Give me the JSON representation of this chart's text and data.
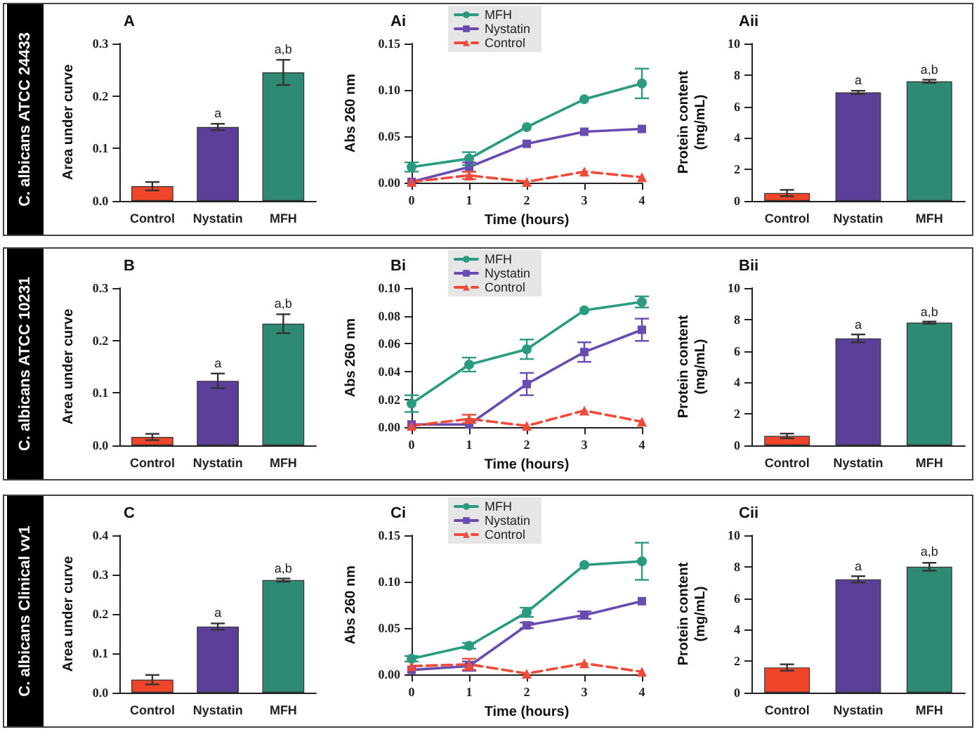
{
  "chart_data": [
    {
      "type": "bar",
      "title": "A",
      "ylabel": "Area under curve",
      "categories": [
        "Control",
        "Nystatin",
        "MFH"
      ],
      "values": [
        0.028,
        0.141,
        0.245
      ],
      "errors": [
        0.008,
        0.006,
        0.024
      ],
      "colors": [
        "#f0452b",
        "#5b3f99",
        "#2e8a73"
      ],
      "ylim": [
        0,
        0.3
      ],
      "yticks": [
        {
          "value": 0,
          "label": "0.0"
        },
        0.1,
        0.2,
        0.3
      ],
      "grid": false,
      "annotations": [
        "C. albicans ATCC 24433",
        {
          "text": "a",
          "x": "Nystatin",
          "y": 0.147
        },
        {
          "text": "a,b",
          "x": "MFH",
          "y": 0.269
        }
      ]
    },
    {
      "type": "line",
      "title": "Ai",
      "xlabel": "Time (hours)",
      "ylabel": "Abs 260 nm",
      "x": [
        0,
        1,
        2,
        3,
        4
      ],
      "xlim": [
        0,
        4
      ],
      "xticks": [
        0,
        1,
        2,
        3,
        4
      ],
      "ylim": [
        0,
        0.15
      ],
      "yticks": [
        {
          "value": 0,
          "label": "0.00"
        },
        0.05,
        {
          "value": 0.1,
          "label": "0.10"
        },
        0.15
      ],
      "grid": false,
      "legend": "top left",
      "series": [
        {
          "name": "MFH",
          "color": "#2a9a80",
          "marker": "circle",
          "line_style": "solid",
          "values": [
            0.017,
            0.026,
            0.06,
            0.09,
            0.107
          ],
          "errors": [
            0.005,
            0.007,
            null,
            null,
            0.016
          ]
        },
        {
          "name": "Nystatin",
          "color": "#6a4cb0",
          "marker": "square",
          "line_style": "solid",
          "values": [
            0.001,
            0.017,
            0.042,
            0.055,
            0.058
          ],
          "errors": [
            null,
            0.005,
            null,
            null,
            null
          ]
        },
        {
          "name": "Control",
          "color": "#f04a3a",
          "marker": "triangle",
          "line_style": "dashed",
          "values": [
            0.001,
            0.008,
            0.001,
            0.012,
            0.006
          ],
          "errors": [
            null,
            0.004,
            null,
            null,
            null
          ]
        }
      ]
    },
    {
      "type": "bar",
      "title": "Aii",
      "ylabel": "Protein content\n(mg/mL)",
      "categories": [
        "Control",
        "Nystatin",
        "MFH"
      ],
      "values": [
        0.5,
        6.9,
        7.6
      ],
      "errors": [
        0.2,
        0.1,
        0.1
      ],
      "colors": [
        "#f0452b",
        "#5b3f99",
        "#2e8a73"
      ],
      "ylim": [
        0,
        10
      ],
      "yticks": [
        0,
        2,
        4,
        6,
        8,
        10
      ],
      "grid": false,
      "annotations": [
        {
          "text": "a",
          "x": "Nystatin",
          "y": 7.0
        },
        {
          "text": "a,b",
          "x": "MFH",
          "y": 7.7
        }
      ]
    },
    {
      "type": "bar",
      "title": "B",
      "ylabel": "Area under curve",
      "categories": [
        "Control",
        "Nystatin",
        "MFH"
      ],
      "values": [
        0.016,
        0.123,
        0.232
      ],
      "errors": [
        0.006,
        0.014,
        0.018
      ],
      "colors": [
        "#f0452b",
        "#5b3f99",
        "#2e8a73"
      ],
      "ylim": [
        0,
        0.3
      ],
      "yticks": [
        {
          "value": 0,
          "label": "0.0"
        },
        0.1,
        0.2,
        0.3
      ],
      "grid": false,
      "annotations": [
        "C. albicans ATCC 10231",
        {
          "text": "a",
          "x": "Nystatin",
          "y": 0.137
        },
        {
          "text": "a,b",
          "x": "MFH",
          "y": 0.25
        }
      ]
    },
    {
      "type": "line",
      "title": "Bi",
      "xlabel": "Time (hours)",
      "ylabel": "Abs 260 nm",
      "x": [
        0,
        1,
        2,
        3,
        4
      ],
      "xlim": [
        0,
        4
      ],
      "xticks": [
        0,
        1,
        2,
        3,
        4
      ],
      "ylim": [
        0,
        0.1
      ],
      "yticks": [
        {
          "value": 0,
          "label": "0.00"
        },
        {
          "value": 0.02,
          "label": "0.02"
        },
        {
          "value": 0.04,
          "label": "0.04"
        },
        {
          "value": 0.06,
          "label": "0.06"
        },
        {
          "value": 0.08,
          "label": "0.08"
        },
        {
          "value": 0.1,
          "label": "0.10"
        }
      ],
      "grid": false,
      "legend": "top left",
      "series": [
        {
          "name": "MFH",
          "color": "#2a9a80",
          "marker": "circle",
          "line_style": "solid",
          "values": [
            0.017,
            0.045,
            0.056,
            0.084,
            0.09
          ],
          "errors": [
            0.006,
            0.005,
            0.007,
            null,
            0.004
          ]
        },
        {
          "name": "Nystatin",
          "color": "#6a4cb0",
          "marker": "square",
          "line_style": "solid",
          "values": [
            0.002,
            0.002,
            0.031,
            0.054,
            0.07
          ],
          "errors": [
            null,
            null,
            0.008,
            0.007,
            0.008
          ]
        },
        {
          "name": "Control",
          "color": "#f04a3a",
          "marker": "triangle",
          "line_style": "dashed",
          "values": [
            0.001,
            0.006,
            0.001,
            0.012,
            0.004
          ],
          "errors": [
            null,
            0.003,
            null,
            null,
            null
          ]
        }
      ]
    },
    {
      "type": "bar",
      "title": "Bii",
      "ylabel": "Protein content\n(mg/mL)",
      "categories": [
        "Control",
        "Nystatin",
        "MFH"
      ],
      "values": [
        0.6,
        6.8,
        7.8
      ],
      "errors": [
        0.15,
        0.25,
        0.07
      ],
      "colors": [
        "#f0452b",
        "#5b3f99",
        "#2e8a73"
      ],
      "ylim": [
        0,
        10
      ],
      "yticks": [
        0,
        2,
        4,
        6,
        8,
        10
      ],
      "grid": false,
      "annotations": [
        {
          "text": "a",
          "x": "Nystatin",
          "y": 7.0
        },
        {
          "text": "a,b",
          "x": "MFH",
          "y": 7.82
        }
      ]
    },
    {
      "type": "bar",
      "title": "C",
      "ylabel": "Area under curve",
      "categories": [
        "Control",
        "Nystatin",
        "MFH"
      ],
      "values": [
        0.033,
        0.168,
        0.286
      ],
      "errors": [
        0.012,
        0.008,
        0.004
      ],
      "colors": [
        "#f0452b",
        "#5b3f99",
        "#2e8a73"
      ],
      "ylim": [
        0,
        0.4
      ],
      "yticks": [
        {
          "value": 0,
          "label": "0.0"
        },
        0.1,
        0.2,
        0.3,
        0.4
      ],
      "grid": false,
      "annotations": [
        "C. albicans Clinical vv1",
        {
          "text": "a",
          "x": "Nystatin",
          "y": 0.176
        },
        {
          "text": "a,b",
          "x": "MFH",
          "y": 0.29
        }
      ]
    },
    {
      "type": "line",
      "title": "Ci",
      "xlabel": "Time (hours)",
      "ylabel": "Abs 260 nm",
      "x": [
        0,
        1,
        2,
        3,
        4
      ],
      "xlim": [
        0,
        4
      ],
      "xticks": [
        0,
        1,
        2,
        3,
        4
      ],
      "ylim": [
        0,
        0.15
      ],
      "yticks": [
        {
          "value": 0,
          "label": "0.00"
        },
        0.05,
        {
          "value": 0.1,
          "label": "0.10"
        },
        0.15
      ],
      "grid": false,
      "legend": "top left",
      "series": [
        {
          "name": "MFH",
          "color": "#2a9a80",
          "marker": "circle",
          "line_style": "solid",
          "values": [
            0.017,
            0.031,
            0.067,
            0.118,
            0.122
          ],
          "errors": [
            0.003,
            0.003,
            0.005,
            null,
            0.02
          ]
        },
        {
          "name": "Nystatin",
          "color": "#6a4cb0",
          "marker": "square",
          "line_style": "solid",
          "values": [
            0.005,
            0.009,
            0.053,
            0.064,
            0.079
          ],
          "errors": [
            null,
            0.005,
            0.003,
            0.004,
            null
          ]
        },
        {
          "name": "Control",
          "color": "#f04a3a",
          "marker": "triangle",
          "line_style": "dashed",
          "values": [
            0.009,
            0.011,
            0.001,
            0.012,
            0.003
          ],
          "errors": [
            null,
            0.006,
            null,
            null,
            null
          ]
        }
      ]
    },
    {
      "type": "bar",
      "title": "Cii",
      "ylabel": "Protein content\n(mg/mL)",
      "categories": [
        "Control",
        "Nystatin",
        "MFH"
      ],
      "values": [
        1.6,
        7.2,
        8.0
      ],
      "errors": [
        0.2,
        0.2,
        0.25
      ],
      "colors": [
        "#f0452b",
        "#5b3f99",
        "#2e8a73"
      ],
      "ylim": [
        0,
        10
      ],
      "yticks": [
        0,
        2,
        4,
        6,
        8,
        10
      ],
      "grid": false,
      "annotations": [
        {
          "text": "a",
          "x": "Nystatin",
          "y": 7.35
        },
        {
          "text": "a,b",
          "x": "MFH",
          "y": 8.3
        }
      ]
    }
  ]
}
